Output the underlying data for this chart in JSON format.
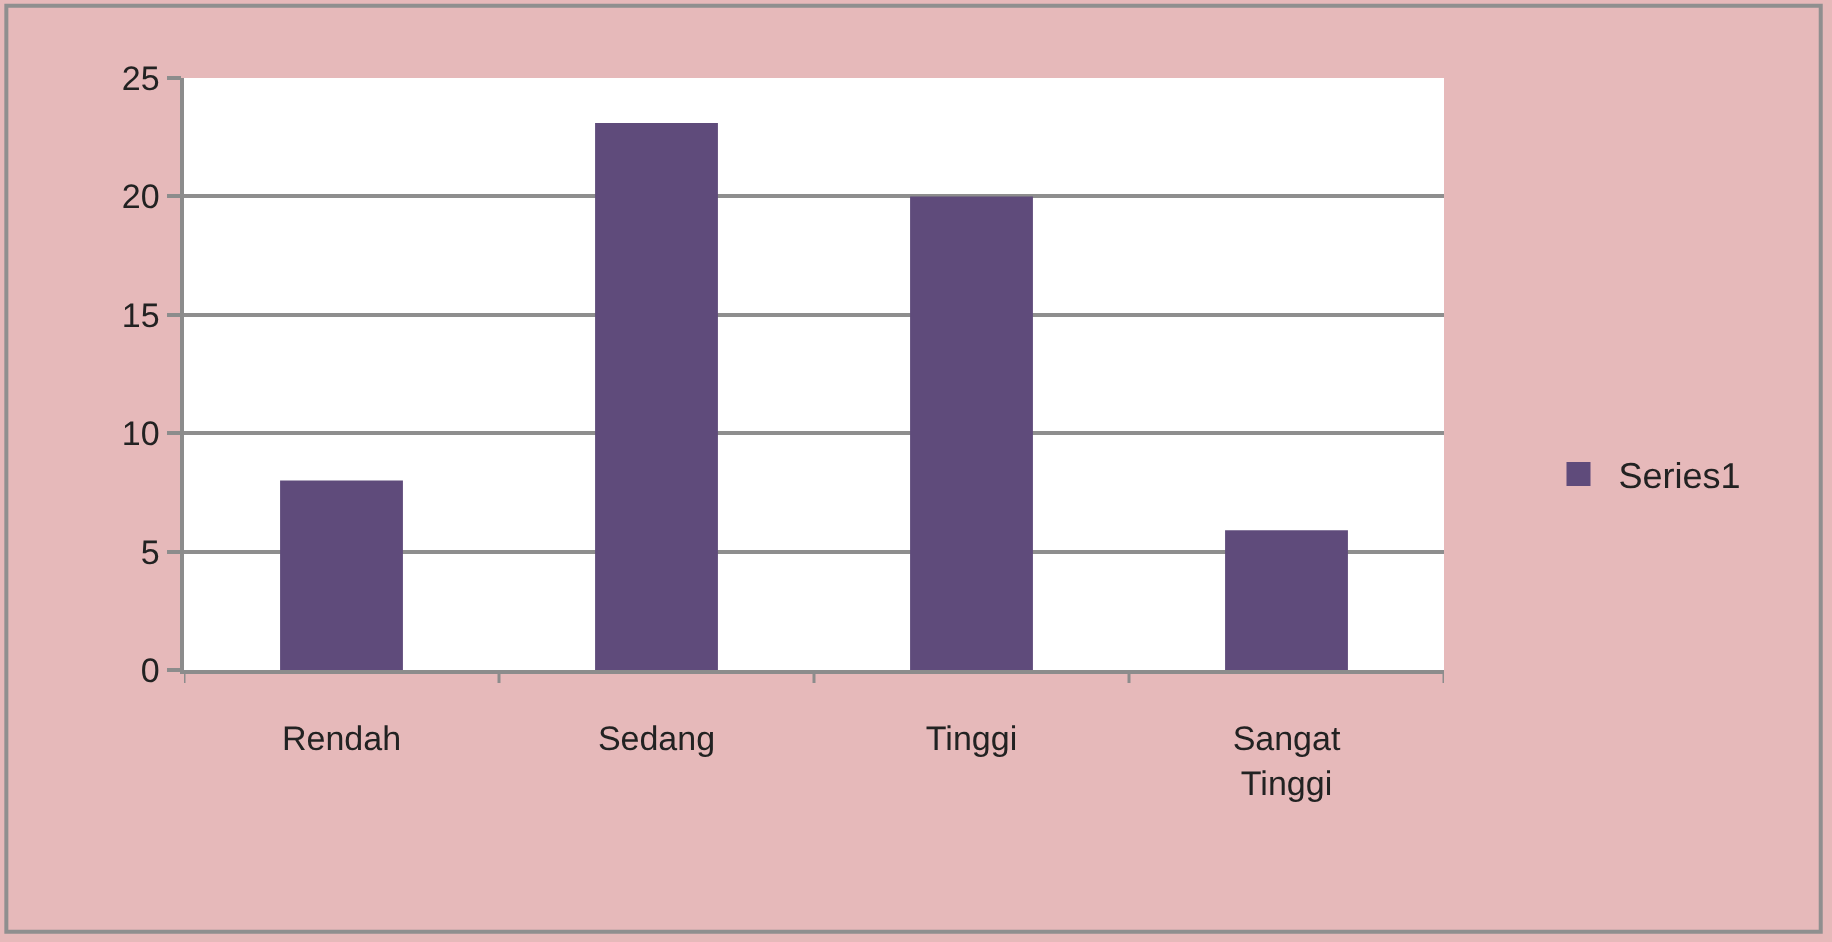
{
  "chart_data": {
    "type": "bar",
    "categories": [
      "Rendah",
      "Sedang",
      "Tinggi",
      "Sangat Tinggi"
    ],
    "series": [
      {
        "name": "Series1",
        "color": "#5f4b7b",
        "values": [
          8,
          23.1,
          20,
          5.9
        ]
      }
    ],
    "ylim": [
      0,
      25
    ],
    "yticks": [
      0,
      5,
      10,
      15,
      20,
      25
    ],
    "grid": "y",
    "legend": "right"
  }
}
